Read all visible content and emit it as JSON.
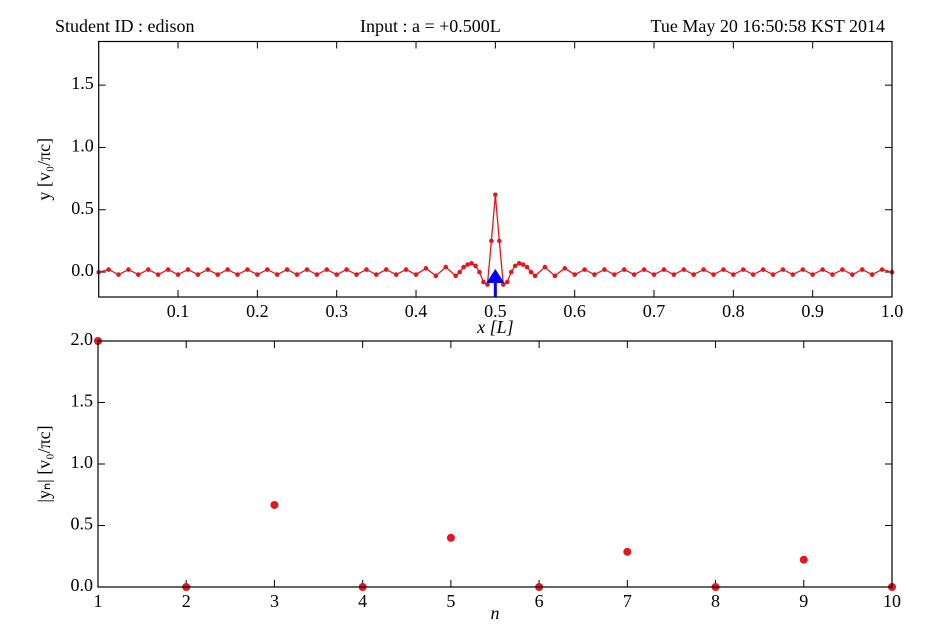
{
  "header": {
    "student": "Student ID : edison",
    "input": "Input : a = +0.500L",
    "timestamp": "Tue May 20 16:50:58 KST 2014"
  },
  "chart_data": [
    {
      "type": "line",
      "color": "#e3171d",
      "markers": true,
      "xlabel": "x [L]",
      "ylabel": "y [v₀/πc]",
      "xlim": [
        0,
        1
      ],
      "ylim": [
        -0.2,
        1.85
      ],
      "xticks": [
        0.1,
        0.2,
        0.3,
        0.4,
        0.5,
        0.6,
        0.7,
        0.8,
        0.9,
        {
          "value": 1,
          "label": "1.0"
        }
      ],
      "yticks": [
        {
          "value": 0,
          "label": "0.0"
        },
        0.5,
        {
          "value": 1,
          "label": "1.0"
        },
        1.5
      ],
      "input_marker": {
        "x": 0.5,
        "color": "#0000ff"
      },
      "x": [
        0,
        0.0125,
        0.025,
        0.0375,
        0.05,
        0.0625,
        0.075,
        0.0875,
        0.1,
        0.1125,
        0.125,
        0.1375,
        0.15,
        0.1625,
        0.175,
        0.1875,
        0.2,
        0.2125,
        0.225,
        0.2375,
        0.25,
        0.2625,
        0.275,
        0.2875,
        0.3,
        0.3125,
        0.325,
        0.3375,
        0.35,
        0.3625,
        0.375,
        0.3875,
        0.4,
        0.4125,
        0.425,
        0.4375,
        0.45,
        0.455,
        0.46,
        0.465,
        0.47,
        0.475,
        0.48,
        0.485,
        0.49,
        0.495,
        0.5,
        0.505,
        0.51,
        0.515,
        0.52,
        0.525,
        0.53,
        0.535,
        0.54,
        0.545,
        0.55,
        0.5625,
        0.575,
        0.5875,
        0.6,
        0.6125,
        0.625,
        0.6375,
        0.65,
        0.6625,
        0.675,
        0.6875,
        0.7,
        0.7125,
        0.725,
        0.7375,
        0.75,
        0.7625,
        0.775,
        0.7875,
        0.8,
        0.8125,
        0.825,
        0.8375,
        0.85,
        0.8625,
        0.875,
        0.8875,
        0.9,
        0.9125,
        0.925,
        0.9375,
        0.95,
        0.9625,
        0.975,
        0.9875,
        1.0
      ],
      "values": [
        0,
        0.02,
        -0.02,
        0.02,
        -0.02,
        0.02,
        -0.02,
        0.02,
        -0.02,
        0.02,
        -0.02,
        0.02,
        -0.02,
        0.02,
        -0.02,
        0.02,
        -0.02,
        0.02,
        -0.02,
        0.02,
        -0.02,
        0.02,
        -0.02,
        0.02,
        -0.02,
        0.02,
        -0.02,
        0.02,
        -0.02,
        0.02,
        -0.02,
        0.02,
        -0.02,
        0.03,
        -0.03,
        0.04,
        -0.03,
        0.0,
        0.04,
        0.06,
        0.07,
        0.05,
        0.0,
        -0.08,
        -0.1,
        0.25,
        0.62,
        0.25,
        -0.1,
        -0.08,
        0.0,
        0.05,
        0.07,
        0.06,
        0.04,
        0.0,
        -0.03,
        0.04,
        -0.03,
        0.03,
        -0.02,
        0.02,
        -0.02,
        0.02,
        -0.02,
        0.02,
        -0.02,
        0.02,
        -0.02,
        0.02,
        -0.02,
        0.02,
        -0.02,
        0.02,
        -0.02,
        0.02,
        -0.02,
        0.02,
        -0.02,
        0.02,
        -0.02,
        0.02,
        -0.02,
        0.02,
        -0.02,
        0.02,
        -0.02,
        0.02,
        -0.02,
        0.02,
        -0.02,
        0.02,
        0
      ]
    },
    {
      "type": "scatter",
      "color": "#e3171d",
      "xlabel": "n",
      "ylabel": "|yₙ| [v₀/πc]",
      "xlim": [
        1,
        10
      ],
      "ylim": [
        0,
        2
      ],
      "xticks": [
        1,
        2,
        3,
        4,
        5,
        6,
        7,
        8,
        9,
        10
      ],
      "yticks": [
        {
          "value": 0,
          "label": "0.0"
        },
        0.5,
        {
          "value": 1,
          "label": "1.0"
        },
        1.5,
        {
          "value": 2,
          "label": "2.0"
        }
      ],
      "x": [
        1,
        2,
        3,
        4,
        5,
        6,
        7,
        8,
        9,
        10
      ],
      "values": [
        2.0,
        0,
        0.667,
        0,
        0.4,
        0,
        0.286,
        0,
        0.222,
        0
      ]
    }
  ]
}
